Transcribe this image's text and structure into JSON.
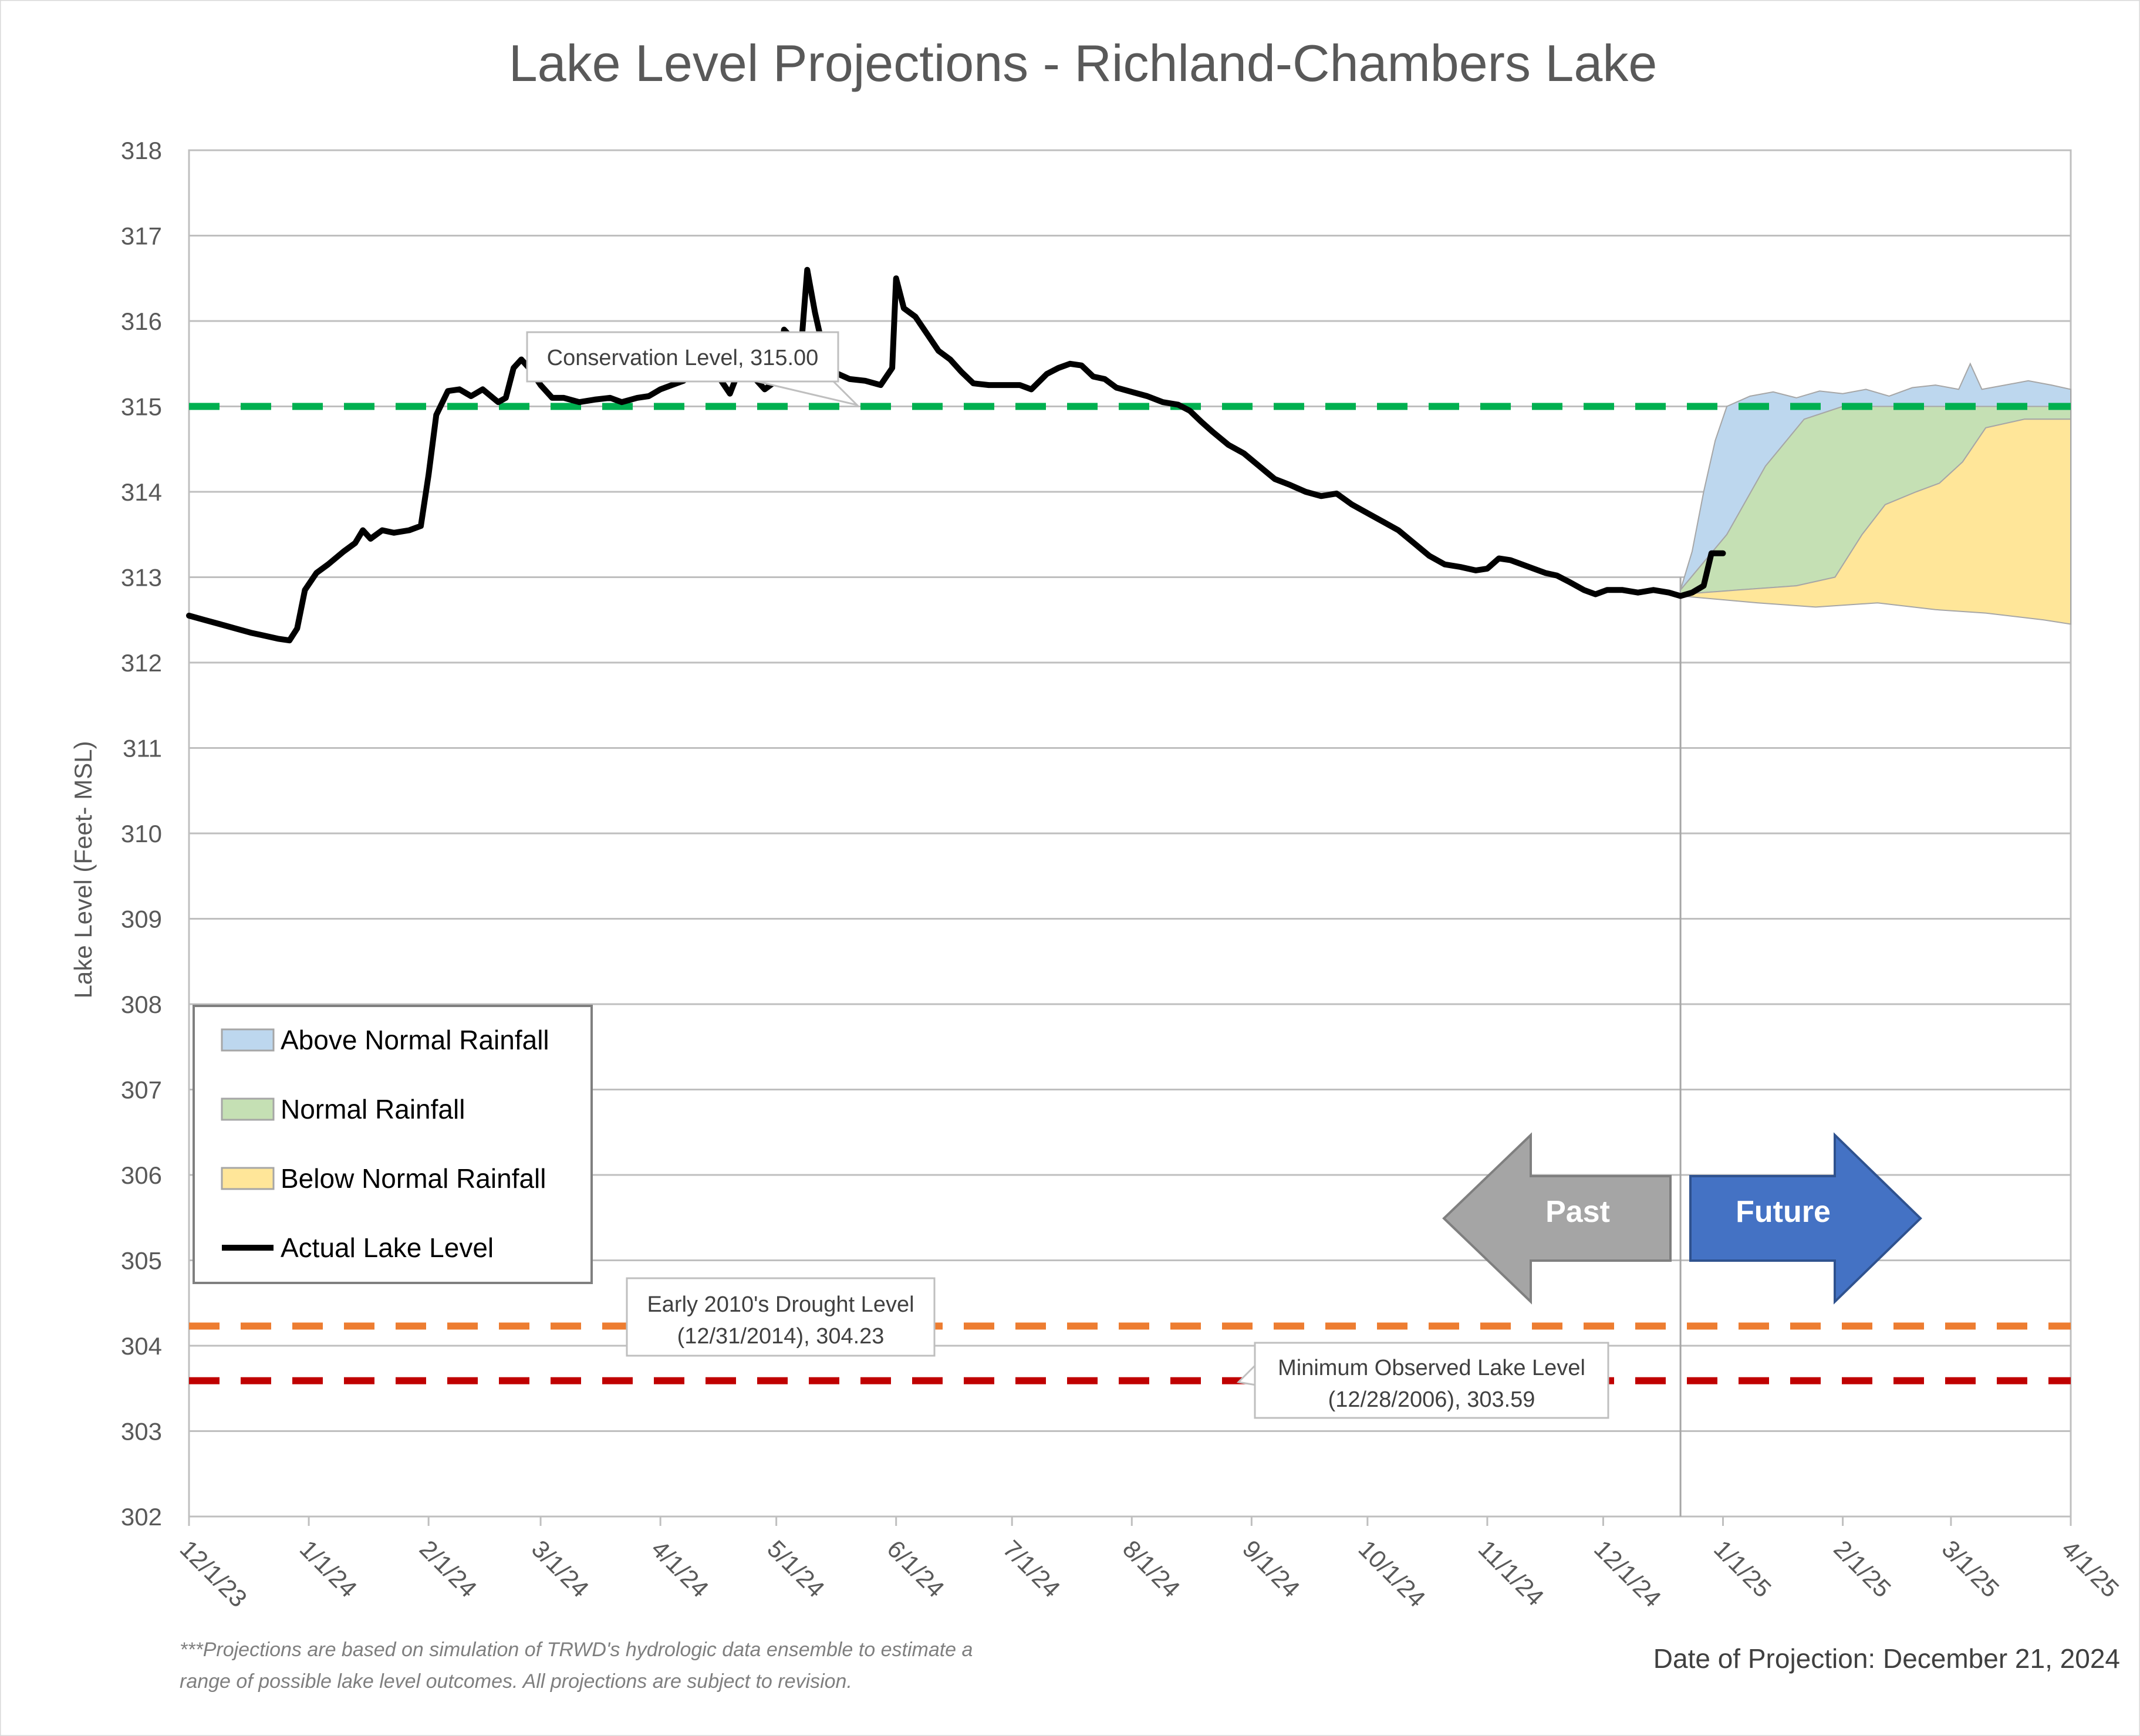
{
  "chart_data": {
    "type": "area",
    "title": "Lake Level Projections - Richland-Chambers Lake",
    "ylabel": "Lake Level (Feet- MSL)",
    "xlabel": "",
    "ylim": [
      302,
      318
    ],
    "xlim": [
      "2023-12-01",
      "2025-04-01"
    ],
    "yticks": [
      "318",
      "317",
      "316",
      "315",
      "314",
      "313",
      "312",
      "311",
      "310",
      "309",
      "308",
      "307",
      "306",
      "305",
      "304",
      "303",
      "302"
    ],
    "xticks": [
      "12/1/23",
      "1/1/24",
      "2/1/24",
      "3/1/24",
      "4/1/24",
      "5/1/24",
      "6/1/24",
      "7/1/24",
      "8/1/24",
      "9/1/24",
      "10/1/24",
      "11/1/24",
      "12/1/24",
      "1/1/25",
      "2/1/25",
      "3/1/25",
      "4/1/25"
    ],
    "xtick_dates": [
      "2023-12-01",
      "2024-01-01",
      "2024-02-01",
      "2024-03-01",
      "2024-04-01",
      "2024-05-01",
      "2024-06-01",
      "2024-07-01",
      "2024-08-01",
      "2024-09-01",
      "2024-10-01",
      "2024-11-01",
      "2024-12-01",
      "2025-01-01",
      "2025-02-01",
      "2025-03-01",
      "2025-04-01"
    ],
    "grid": true,
    "legend_position": "bottom-left",
    "projection_date_marker": "2024-12-21",
    "series": [
      {
        "name": "Actual Lake Level",
        "kind": "line",
        "color": "#000000",
        "points": [
          [
            "2023-12-01",
            312.55
          ],
          [
            "2023-12-05",
            312.5
          ],
          [
            "2023-12-09",
            312.45
          ],
          [
            "2023-12-13",
            312.4
          ],
          [
            "2023-12-17",
            312.35
          ],
          [
            "2023-12-20",
            312.32
          ],
          [
            "2023-12-24",
            312.28
          ],
          [
            "2023-12-27",
            312.26
          ],
          [
            "2023-12-29",
            312.4
          ],
          [
            "2023-12-31",
            312.85
          ],
          [
            "2024-01-03",
            313.05
          ],
          [
            "2024-01-06",
            313.15
          ],
          [
            "2024-01-10",
            313.3
          ],
          [
            "2024-01-13",
            313.4
          ],
          [
            "2024-01-15",
            313.55
          ],
          [
            "2024-01-17",
            313.45
          ],
          [
            "2024-01-20",
            313.55
          ],
          [
            "2024-01-23",
            313.52
          ],
          [
            "2024-01-27",
            313.55
          ],
          [
            "2024-01-30",
            313.6
          ],
          [
            "2024-02-01",
            314.2
          ],
          [
            "2024-02-03",
            314.9
          ],
          [
            "2024-02-06",
            315.18
          ],
          [
            "2024-02-09",
            315.2
          ],
          [
            "2024-02-12",
            315.12
          ],
          [
            "2024-02-15",
            315.2
          ],
          [
            "2024-02-19",
            315.05
          ],
          [
            "2024-02-21",
            315.1
          ],
          [
            "2024-02-23",
            315.45
          ],
          [
            "2024-02-25",
            315.55
          ],
          [
            "2024-02-27",
            315.45
          ],
          [
            "2024-03-01",
            315.25
          ],
          [
            "2024-03-04",
            315.1
          ],
          [
            "2024-03-07",
            315.1
          ],
          [
            "2024-03-11",
            315.05
          ],
          [
            "2024-03-15",
            315.08
          ],
          [
            "2024-03-19",
            315.1
          ],
          [
            "2024-03-22",
            315.05
          ],
          [
            "2024-03-26",
            315.1
          ],
          [
            "2024-03-29",
            315.12
          ],
          [
            "2024-04-01",
            315.2
          ],
          [
            "2024-04-04",
            315.25
          ],
          [
            "2024-04-07",
            315.3
          ],
          [
            "2024-04-10",
            315.45
          ],
          [
            "2024-04-13",
            315.5
          ],
          [
            "2024-04-16",
            315.35
          ],
          [
            "2024-04-19",
            315.15
          ],
          [
            "2024-04-22",
            315.5
          ],
          [
            "2024-04-25",
            315.35
          ],
          [
            "2024-04-28",
            315.2
          ],
          [
            "2024-05-01",
            315.3
          ],
          [
            "2024-05-03",
            315.9
          ],
          [
            "2024-05-05",
            315.8
          ],
          [
            "2024-05-07",
            315.45
          ],
          [
            "2024-05-09",
            316.6
          ],
          [
            "2024-05-11",
            316.1
          ],
          [
            "2024-05-13",
            315.7
          ],
          [
            "2024-05-16",
            315.4
          ],
          [
            "2024-05-20",
            315.32
          ],
          [
            "2024-05-24",
            315.3
          ],
          [
            "2024-05-28",
            315.25
          ],
          [
            "2024-05-31",
            315.45
          ],
          [
            "2024-06-01",
            316.5
          ],
          [
            "2024-06-03",
            316.15
          ],
          [
            "2024-06-06",
            316.05
          ],
          [
            "2024-06-09",
            315.85
          ],
          [
            "2024-06-12",
            315.65
          ],
          [
            "2024-06-15",
            315.55
          ],
          [
            "2024-06-18",
            315.4
          ],
          [
            "2024-06-21",
            315.27
          ],
          [
            "2024-06-25",
            315.25
          ],
          [
            "2024-06-29",
            315.25
          ],
          [
            "2024-07-03",
            315.25
          ],
          [
            "2024-07-06",
            315.2
          ],
          [
            "2024-07-10",
            315.38
          ],
          [
            "2024-07-13",
            315.45
          ],
          [
            "2024-07-16",
            315.5
          ],
          [
            "2024-07-19",
            315.48
          ],
          [
            "2024-07-22",
            315.35
          ],
          [
            "2024-07-25",
            315.32
          ],
          [
            "2024-07-28",
            315.22
          ],
          [
            "2024-08-01",
            315.17
          ],
          [
            "2024-08-05",
            315.12
          ],
          [
            "2024-08-09",
            315.05
          ],
          [
            "2024-08-13",
            315.02
          ],
          [
            "2024-08-16",
            314.95
          ],
          [
            "2024-08-19",
            314.82
          ],
          [
            "2024-08-22",
            314.7
          ],
          [
            "2024-08-26",
            314.55
          ],
          [
            "2024-08-30",
            314.45
          ],
          [
            "2024-09-03",
            314.3
          ],
          [
            "2024-09-07",
            314.15
          ],
          [
            "2024-09-11",
            314.08
          ],
          [
            "2024-09-15",
            314.0
          ],
          [
            "2024-09-19",
            313.95
          ],
          [
            "2024-09-23",
            313.98
          ],
          [
            "2024-09-27",
            313.85
          ],
          [
            "2024-10-01",
            313.75
          ],
          [
            "2024-10-05",
            313.65
          ],
          [
            "2024-10-09",
            313.55
          ],
          [
            "2024-10-13",
            313.4
          ],
          [
            "2024-10-17",
            313.25
          ],
          [
            "2024-10-21",
            313.15
          ],
          [
            "2024-10-25",
            313.12
          ],
          [
            "2024-10-29",
            313.08
          ],
          [
            "2024-11-01",
            313.1
          ],
          [
            "2024-11-04",
            313.22
          ],
          [
            "2024-11-07",
            313.2
          ],
          [
            "2024-11-10",
            313.15
          ],
          [
            "2024-11-13",
            313.1
          ],
          [
            "2024-11-16",
            313.05
          ],
          [
            "2024-11-19",
            313.02
          ],
          [
            "2024-11-22",
            312.95
          ],
          [
            "2024-11-26",
            312.85
          ],
          [
            "2024-11-29",
            312.8
          ],
          [
            "2024-12-02",
            312.85
          ],
          [
            "2024-12-06",
            312.85
          ],
          [
            "2024-12-10",
            312.82
          ],
          [
            "2024-12-14",
            312.85
          ],
          [
            "2024-12-18",
            312.82
          ],
          [
            "2024-12-21",
            312.78
          ],
          [
            "2024-12-24",
            312.82
          ],
          [
            "2024-12-27",
            312.9
          ],
          [
            "2024-12-29",
            313.28
          ],
          [
            "2025-01-01",
            313.28
          ]
        ]
      },
      {
        "name": "Above Normal Rainfall",
        "kind": "band",
        "color": "#BDD7EE",
        "upper": [
          [
            "2024-12-21",
            312.85
          ],
          [
            "2024-12-24",
            313.3
          ],
          [
            "2024-12-27",
            314.0
          ],
          [
            "2024-12-30",
            314.6
          ],
          [
            "2025-01-02",
            315.0
          ],
          [
            "2025-01-08",
            315.12
          ],
          [
            "2025-01-14",
            315.17
          ],
          [
            "2025-01-20",
            315.1
          ],
          [
            "2025-01-26",
            315.18
          ],
          [
            "2025-02-01",
            315.15
          ],
          [
            "2025-02-07",
            315.2
          ],
          [
            "2025-02-13",
            315.12
          ],
          [
            "2025-02-19",
            315.22
          ],
          [
            "2025-02-25",
            315.25
          ],
          [
            "2025-03-03",
            315.2
          ],
          [
            "2025-03-06",
            315.5
          ],
          [
            "2025-03-09",
            315.2
          ],
          [
            "2025-03-15",
            315.25
          ],
          [
            "2025-03-21",
            315.3
          ],
          [
            "2025-03-27",
            315.25
          ],
          [
            "2025-04-01",
            315.2
          ]
        ],
        "lower": [
          [
            "2024-12-21",
            312.85
          ],
          [
            "2025-01-02",
            313.5
          ],
          [
            "2025-01-12",
            314.3
          ],
          [
            "2025-01-22",
            314.85
          ],
          [
            "2025-02-01",
            315.0
          ],
          [
            "2025-04-01",
            315.0
          ]
        ]
      },
      {
        "name": "Normal Rainfall",
        "kind": "band",
        "color": "#C5E0B4",
        "upper": [
          [
            "2024-12-21",
            312.85
          ],
          [
            "2025-01-02",
            313.5
          ],
          [
            "2025-01-12",
            314.3
          ],
          [
            "2025-01-22",
            314.85
          ],
          [
            "2025-02-01",
            315.0
          ],
          [
            "2025-04-01",
            315.0
          ]
        ],
        "lower": [
          [
            "2024-12-21",
            312.8
          ],
          [
            "2025-01-05",
            312.85
          ],
          [
            "2025-01-20",
            312.9
          ],
          [
            "2025-01-30",
            313.0
          ],
          [
            "2025-02-06",
            313.5
          ],
          [
            "2025-02-12",
            313.85
          ],
          [
            "2025-02-20",
            314.0
          ],
          [
            "2025-02-26",
            314.1
          ],
          [
            "2025-03-04",
            314.35
          ],
          [
            "2025-03-10",
            314.75
          ],
          [
            "2025-03-20",
            314.85
          ],
          [
            "2025-04-01",
            314.85
          ]
        ]
      },
      {
        "name": "Below Normal Rainfall",
        "kind": "band",
        "color": "#FFE699",
        "upper": [
          [
            "2024-12-21",
            312.8
          ],
          [
            "2025-01-05",
            312.85
          ],
          [
            "2025-01-20",
            312.9
          ],
          [
            "2025-01-30",
            313.0
          ],
          [
            "2025-02-06",
            313.5
          ],
          [
            "2025-02-12",
            313.85
          ],
          [
            "2025-02-20",
            314.0
          ],
          [
            "2025-02-26",
            314.1
          ],
          [
            "2025-03-04",
            314.35
          ],
          [
            "2025-03-10",
            314.75
          ],
          [
            "2025-03-20",
            314.85
          ],
          [
            "2025-04-01",
            314.85
          ]
        ],
        "lower": [
          [
            "2024-12-21",
            312.78
          ],
          [
            "2025-01-10",
            312.7
          ],
          [
            "2025-01-25",
            312.65
          ],
          [
            "2025-02-10",
            312.7
          ],
          [
            "2025-02-25",
            312.62
          ],
          [
            "2025-03-10",
            312.58
          ],
          [
            "2025-03-25",
            312.5
          ],
          [
            "2025-04-01",
            312.45
          ]
        ]
      }
    ],
    "reference_lines": [
      {
        "label": "Conservation Level, 315.00",
        "value": 315.0,
        "color": "#00B050"
      },
      {
        "label": "Early 2010's Drought Level (12/31/2014), 304.23",
        "value": 304.23,
        "color": "#ED7D31"
      },
      {
        "label": "Minimum Observed Lake Level (12/28/2006), 303.59",
        "value": 303.59,
        "color": "#C00000"
      }
    ]
  },
  "callouts": {
    "conservation": "Conservation Level, 315.00",
    "drought_line1": "Early 2010's Drought Level",
    "drought_line2": "(12/31/2014), 304.23",
    "minimum_line1": "Minimum Observed Lake Level",
    "minimum_line2": "(12/28/2006), 303.59"
  },
  "legend": {
    "items": [
      {
        "label": "Above Normal Rainfall",
        "color": "#BDD7EE"
      },
      {
        "label": "Normal Rainfall",
        "color": "#C5E0B4"
      },
      {
        "label": "Below Normal Rainfall",
        "color": "#FFE699"
      },
      {
        "label": "Actual Lake Level",
        "color": "#000000"
      }
    ]
  },
  "arrows": {
    "past": {
      "label": "Past",
      "color": "#A5A5A5"
    },
    "future": {
      "label": "Future",
      "color": "#4472C4"
    }
  },
  "footnote": {
    "line1": "***Projections are based on simulation of TRWD's hydrologic data ensemble to estimate a",
    "line2": "range of possible lake level outcomes.  All projections are subject to revision."
  },
  "projection_date": "Date of Projection: December 21, 2024"
}
